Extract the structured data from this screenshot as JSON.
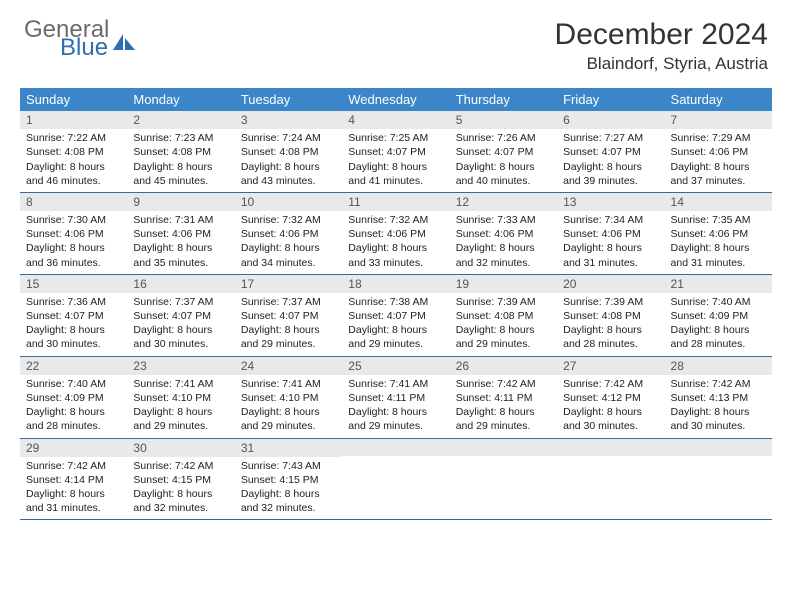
{
  "brand": {
    "general": "General",
    "blue": "Blue"
  },
  "title": "December 2024",
  "location": "Blaindorf, Styria, Austria",
  "colors": {
    "header_bar": "#3a86c8",
    "band": "#e9e9e9",
    "rule": "#3a6a9a",
    "logo_general": "#6b6b6b",
    "logo_blue": "#2f6fb0"
  },
  "weekdays": [
    "Sunday",
    "Monday",
    "Tuesday",
    "Wednesday",
    "Thursday",
    "Friday",
    "Saturday"
  ],
  "weeks": [
    [
      {
        "n": "1",
        "sr": "Sunrise: 7:22 AM",
        "ss": "Sunset: 4:08 PM",
        "dl1": "Daylight: 8 hours",
        "dl2": "and 46 minutes."
      },
      {
        "n": "2",
        "sr": "Sunrise: 7:23 AM",
        "ss": "Sunset: 4:08 PM",
        "dl1": "Daylight: 8 hours",
        "dl2": "and 45 minutes."
      },
      {
        "n": "3",
        "sr": "Sunrise: 7:24 AM",
        "ss": "Sunset: 4:08 PM",
        "dl1": "Daylight: 8 hours",
        "dl2": "and 43 minutes."
      },
      {
        "n": "4",
        "sr": "Sunrise: 7:25 AM",
        "ss": "Sunset: 4:07 PM",
        "dl1": "Daylight: 8 hours",
        "dl2": "and 41 minutes."
      },
      {
        "n": "5",
        "sr": "Sunrise: 7:26 AM",
        "ss": "Sunset: 4:07 PM",
        "dl1": "Daylight: 8 hours",
        "dl2": "and 40 minutes."
      },
      {
        "n": "6",
        "sr": "Sunrise: 7:27 AM",
        "ss": "Sunset: 4:07 PM",
        "dl1": "Daylight: 8 hours",
        "dl2": "and 39 minutes."
      },
      {
        "n": "7",
        "sr": "Sunrise: 7:29 AM",
        "ss": "Sunset: 4:06 PM",
        "dl1": "Daylight: 8 hours",
        "dl2": "and 37 minutes."
      }
    ],
    [
      {
        "n": "8",
        "sr": "Sunrise: 7:30 AM",
        "ss": "Sunset: 4:06 PM",
        "dl1": "Daylight: 8 hours",
        "dl2": "and 36 minutes."
      },
      {
        "n": "9",
        "sr": "Sunrise: 7:31 AM",
        "ss": "Sunset: 4:06 PM",
        "dl1": "Daylight: 8 hours",
        "dl2": "and 35 minutes."
      },
      {
        "n": "10",
        "sr": "Sunrise: 7:32 AM",
        "ss": "Sunset: 4:06 PM",
        "dl1": "Daylight: 8 hours",
        "dl2": "and 34 minutes."
      },
      {
        "n": "11",
        "sr": "Sunrise: 7:32 AM",
        "ss": "Sunset: 4:06 PM",
        "dl1": "Daylight: 8 hours",
        "dl2": "and 33 minutes."
      },
      {
        "n": "12",
        "sr": "Sunrise: 7:33 AM",
        "ss": "Sunset: 4:06 PM",
        "dl1": "Daylight: 8 hours",
        "dl2": "and 32 minutes."
      },
      {
        "n": "13",
        "sr": "Sunrise: 7:34 AM",
        "ss": "Sunset: 4:06 PM",
        "dl1": "Daylight: 8 hours",
        "dl2": "and 31 minutes."
      },
      {
        "n": "14",
        "sr": "Sunrise: 7:35 AM",
        "ss": "Sunset: 4:06 PM",
        "dl1": "Daylight: 8 hours",
        "dl2": "and 31 minutes."
      }
    ],
    [
      {
        "n": "15",
        "sr": "Sunrise: 7:36 AM",
        "ss": "Sunset: 4:07 PM",
        "dl1": "Daylight: 8 hours",
        "dl2": "and 30 minutes."
      },
      {
        "n": "16",
        "sr": "Sunrise: 7:37 AM",
        "ss": "Sunset: 4:07 PM",
        "dl1": "Daylight: 8 hours",
        "dl2": "and 30 minutes."
      },
      {
        "n": "17",
        "sr": "Sunrise: 7:37 AM",
        "ss": "Sunset: 4:07 PM",
        "dl1": "Daylight: 8 hours",
        "dl2": "and 29 minutes."
      },
      {
        "n": "18",
        "sr": "Sunrise: 7:38 AM",
        "ss": "Sunset: 4:07 PM",
        "dl1": "Daylight: 8 hours",
        "dl2": "and 29 minutes."
      },
      {
        "n": "19",
        "sr": "Sunrise: 7:39 AM",
        "ss": "Sunset: 4:08 PM",
        "dl1": "Daylight: 8 hours",
        "dl2": "and 29 minutes."
      },
      {
        "n": "20",
        "sr": "Sunrise: 7:39 AM",
        "ss": "Sunset: 4:08 PM",
        "dl1": "Daylight: 8 hours",
        "dl2": "and 28 minutes."
      },
      {
        "n": "21",
        "sr": "Sunrise: 7:40 AM",
        "ss": "Sunset: 4:09 PM",
        "dl1": "Daylight: 8 hours",
        "dl2": "and 28 minutes."
      }
    ],
    [
      {
        "n": "22",
        "sr": "Sunrise: 7:40 AM",
        "ss": "Sunset: 4:09 PM",
        "dl1": "Daylight: 8 hours",
        "dl2": "and 28 minutes."
      },
      {
        "n": "23",
        "sr": "Sunrise: 7:41 AM",
        "ss": "Sunset: 4:10 PM",
        "dl1": "Daylight: 8 hours",
        "dl2": "and 29 minutes."
      },
      {
        "n": "24",
        "sr": "Sunrise: 7:41 AM",
        "ss": "Sunset: 4:10 PM",
        "dl1": "Daylight: 8 hours",
        "dl2": "and 29 minutes."
      },
      {
        "n": "25",
        "sr": "Sunrise: 7:41 AM",
        "ss": "Sunset: 4:11 PM",
        "dl1": "Daylight: 8 hours",
        "dl2": "and 29 minutes."
      },
      {
        "n": "26",
        "sr": "Sunrise: 7:42 AM",
        "ss": "Sunset: 4:11 PM",
        "dl1": "Daylight: 8 hours",
        "dl2": "and 29 minutes."
      },
      {
        "n": "27",
        "sr": "Sunrise: 7:42 AM",
        "ss": "Sunset: 4:12 PM",
        "dl1": "Daylight: 8 hours",
        "dl2": "and 30 minutes."
      },
      {
        "n": "28",
        "sr": "Sunrise: 7:42 AM",
        "ss": "Sunset: 4:13 PM",
        "dl1": "Daylight: 8 hours",
        "dl2": "and 30 minutes."
      }
    ],
    [
      {
        "n": "29",
        "sr": "Sunrise: 7:42 AM",
        "ss": "Sunset: 4:14 PM",
        "dl1": "Daylight: 8 hours",
        "dl2": "and 31 minutes."
      },
      {
        "n": "30",
        "sr": "Sunrise: 7:42 AM",
        "ss": "Sunset: 4:15 PM",
        "dl1": "Daylight: 8 hours",
        "dl2": "and 32 minutes."
      },
      {
        "n": "31",
        "sr": "Sunrise: 7:43 AM",
        "ss": "Sunset: 4:15 PM",
        "dl1": "Daylight: 8 hours",
        "dl2": "and 32 minutes."
      },
      {
        "empty": true
      },
      {
        "empty": true
      },
      {
        "empty": true
      },
      {
        "empty": true
      }
    ]
  ]
}
